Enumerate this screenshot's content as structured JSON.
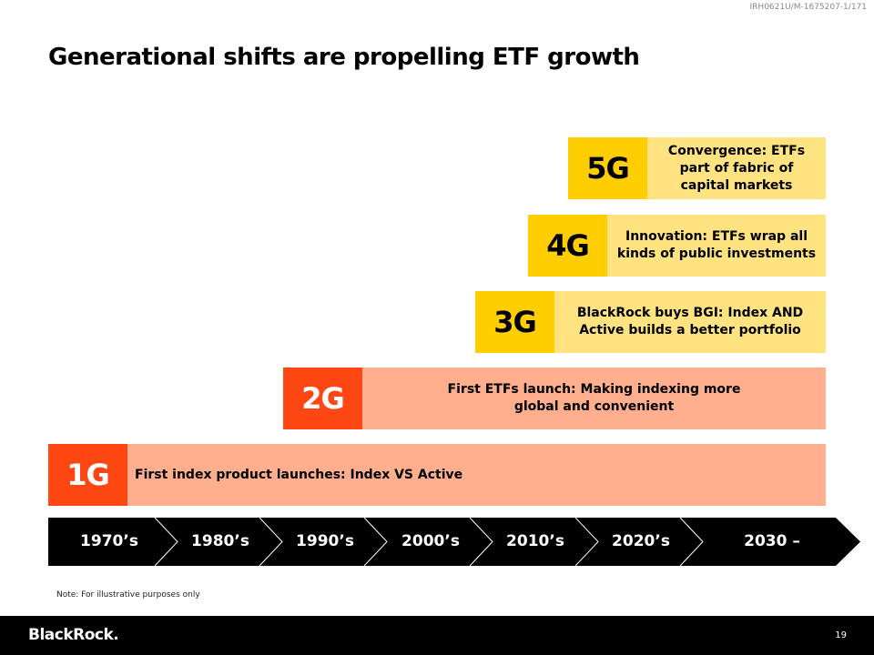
{
  "doc_id": "IRH0621U/M-1675207-1/171",
  "title": "Generational shifts are propelling ETF growth",
  "generations": [
    {
      "tag": "5G",
      "text": "Convergence: ETFs part of fabric of capital markets"
    },
    {
      "tag": "4G",
      "text": "Innovation: ETFs wrap all kinds of public investments"
    },
    {
      "tag": "3G",
      "text": "BlackRock buys BGI: Index AND Active builds a better portfolio"
    },
    {
      "tag": "2G",
      "text": "First ETFs launch: Making indexing more global and convenient"
    },
    {
      "tag": "1G",
      "text": "First index product launches: Index VS Active"
    }
  ],
  "timeline": [
    "1970’s",
    "1980’s",
    "1990’s",
    "2000’s",
    "2010’s",
    "2020’s",
    "2030 –"
  ],
  "note": "Note: For illustrative purposes only",
  "footer": {
    "logo": "BlackRock.",
    "page": "19"
  },
  "colors": {
    "yellow": "#ffce00",
    "light_yellow": "#ffe380",
    "orange": "#ff4713",
    "light_orange": "#ffae8e"
  }
}
